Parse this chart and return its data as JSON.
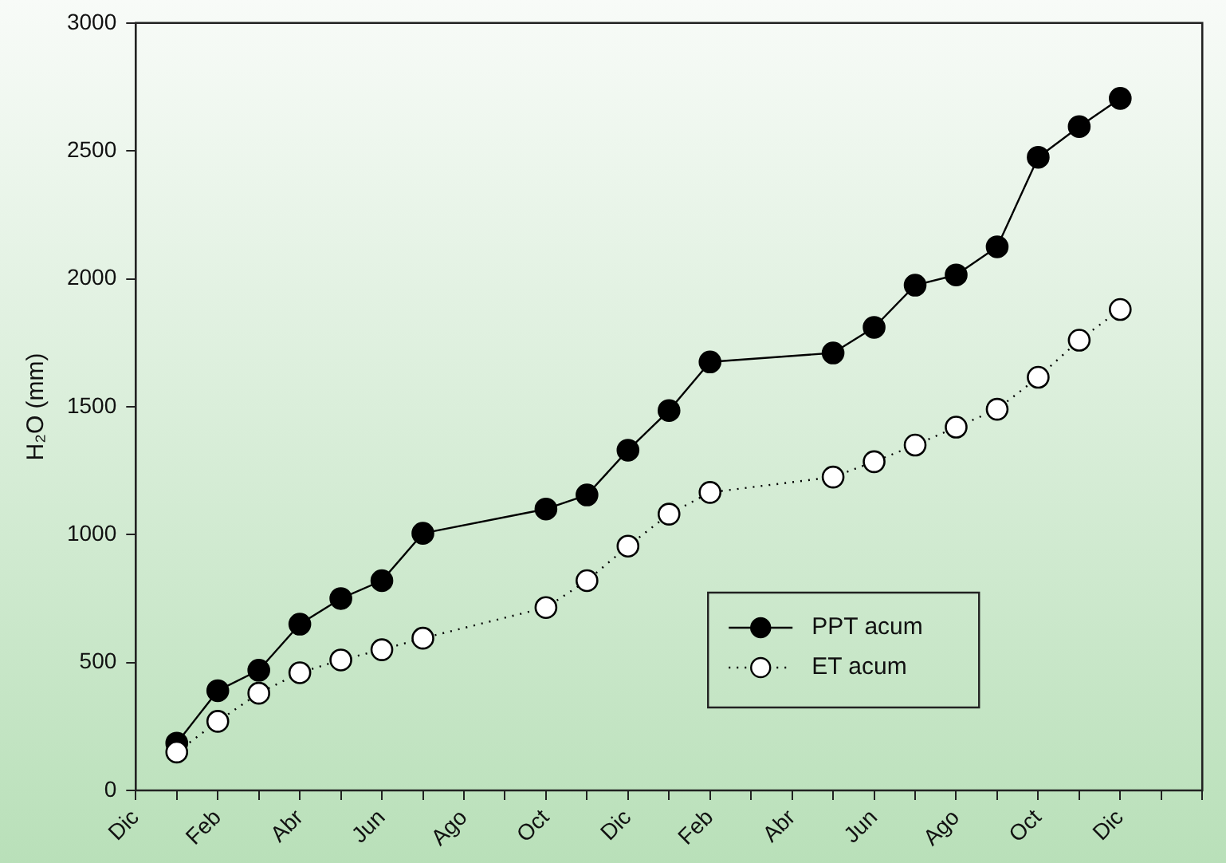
{
  "chart_data": {
    "type": "line",
    "ylabel": "H₂O (mm)",
    "categories": [
      "Dic",
      null,
      "Feb",
      null,
      "Abr",
      null,
      "Jun",
      null,
      "Ago",
      null,
      "Oct",
      null,
      "Dic",
      null,
      "Feb",
      null,
      "Abr",
      null,
      "Jun",
      null,
      "Ago",
      null,
      "Oct",
      null,
      "Dic",
      null,
      null
    ],
    "ylim": [
      0,
      3000
    ],
    "yticks": [
      0,
      500,
      1000,
      1500,
      2000,
      2500,
      3000
    ],
    "grid": false,
    "legend": "bottom right",
    "marker": "circle",
    "series": [
      {
        "name": "PPT acum",
        "color": "#000000",
        "line_style": "solid",
        "values": [
          null,
          185,
          390,
          470,
          650,
          750,
          820,
          1005,
          null,
          null,
          1100,
          1155,
          1330,
          1485,
          1675,
          null,
          null,
          1710,
          1810,
          1975,
          2015,
          2125,
          2475,
          2595,
          2705,
          null,
          null
        ]
      },
      {
        "name": "ET acum",
        "color": "#ffffff",
        "line_style": "dotted",
        "values": [
          null,
          150,
          270,
          380,
          460,
          510,
          550,
          595,
          null,
          null,
          715,
          820,
          955,
          1080,
          1165,
          null,
          null,
          1225,
          1285,
          1350,
          1420,
          1490,
          1615,
          1760,
          1880,
          null,
          null
        ]
      }
    ]
  }
}
